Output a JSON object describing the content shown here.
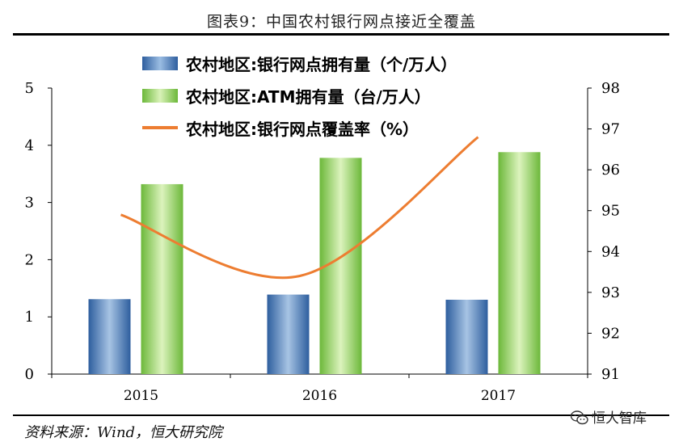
{
  "title": "图表9：中国农村银行网点接近全覆盖",
  "source": "资料来源：Wind，恒大研究院",
  "watermark": "恒大智库",
  "chart_data": {
    "type": "bar",
    "categories": [
      "2015",
      "2016",
      "2017"
    ],
    "series": [
      {
        "name": "农村地区:银行网点拥有量（个/万人）",
        "values": [
          1.31,
          1.39,
          1.3
        ],
        "axis": "left",
        "color": "#4f81bd",
        "kind": "bar"
      },
      {
        "name": "农村地区:ATM拥有量（台/万人）",
        "values": [
          3.32,
          3.78,
          3.88
        ],
        "axis": "left",
        "color": "#8fd14f",
        "kind": "bar"
      },
      {
        "name": "农村地区:银行网点覆盖率（%）",
        "values": [
          94.9,
          93.4,
          96.8
        ],
        "axis": "right",
        "color": "#ed7d31",
        "kind": "line"
      }
    ],
    "ylim": [
      0,
      5
    ],
    "yticks": [
      "0",
      "1",
      "2",
      "3",
      "4",
      "5"
    ],
    "y2lim": [
      91,
      98
    ],
    "y2ticks": [
      "91",
      "92",
      "93",
      "94",
      "95",
      "96",
      "97",
      "98"
    ],
    "legend_position": "top-left",
    "grid": false
  }
}
